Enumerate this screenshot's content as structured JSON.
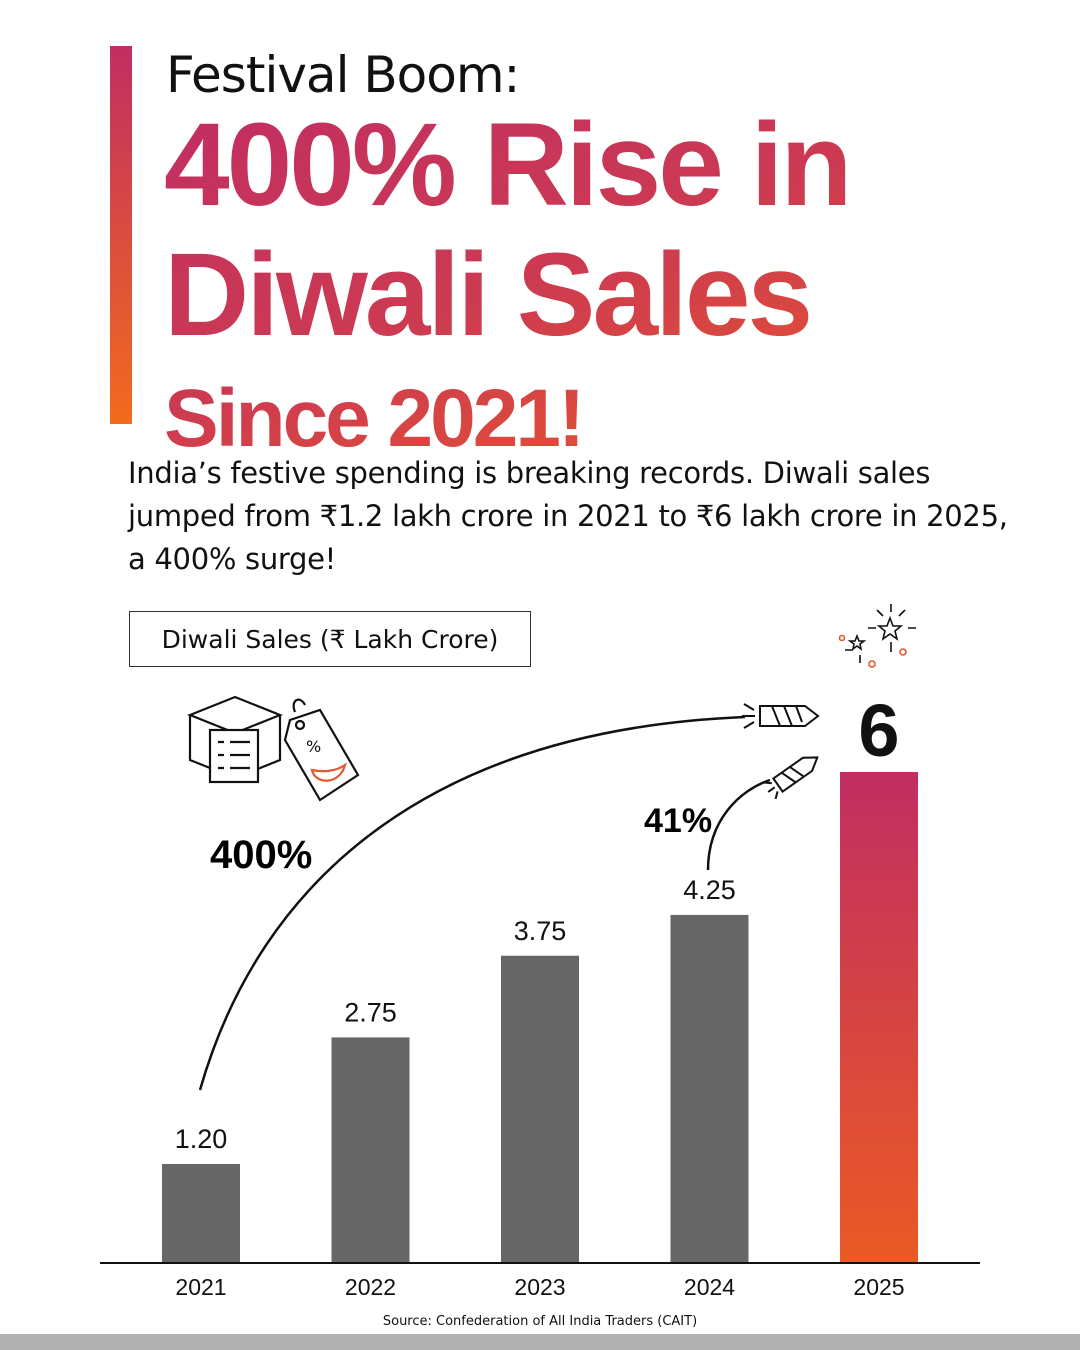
{
  "header": {
    "subtitle": "Festival Boom:",
    "line1": "400% Rise in",
    "line2": "Diwali Sales",
    "line3": "Since 2021!"
  },
  "intro": "India’s festive spending is breaking records. Diwali sales jumped from ₹1.2 lakh crore in 2021 to ₹6 lakh crore in 2025, a 400% surge!",
  "colors": {
    "bar": "#666666",
    "highlight_top": "#c12e62",
    "highlight_bottom": "#ea5a24",
    "text": "#111111"
  },
  "icons": [
    "box-checklist-icon",
    "price-tag-icon",
    "rocket-firework-icon",
    "sparkle-firework-icon"
  ],
  "chart_data": {
    "type": "bar",
    "legend": "Diwali Sales (₹ Lakh Crore)",
    "categories": [
      "2021",
      "2022",
      "2023",
      "2024",
      "2025"
    ],
    "values": [
      1.2,
      2.75,
      3.75,
      4.25,
      6
    ],
    "data_labels": [
      "1.20",
      "2.75",
      "3.75",
      "4.25",
      "6"
    ],
    "highlight": "2025",
    "annotations": [
      {
        "text": "400%",
        "from": "2021",
        "to": "2025"
      },
      {
        "text": "41%",
        "from": "2024",
        "to": "2025"
      }
    ],
    "ylim": [
      0,
      6
    ],
    "grid": false,
    "source": "Source: Confederation of All India Traders (CAIT)"
  }
}
